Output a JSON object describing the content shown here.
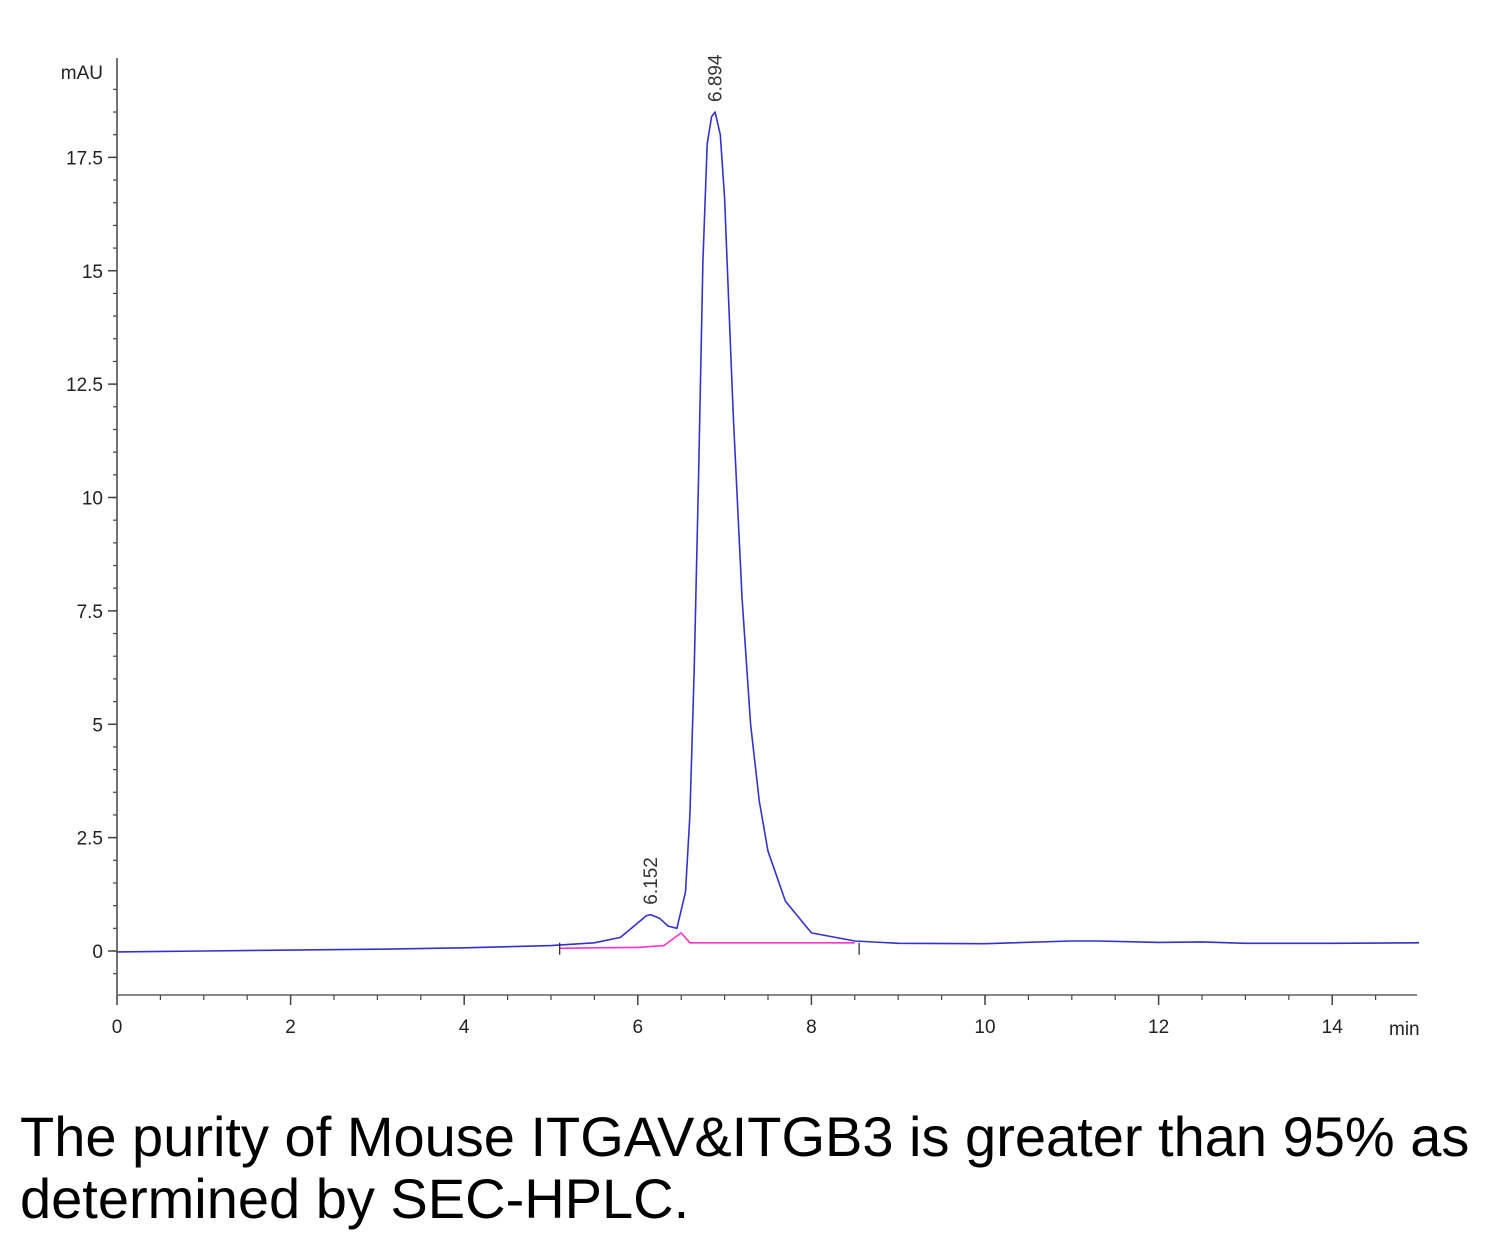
{
  "chart_data": {
    "type": "line",
    "ylabel": "mAU",
    "xlabel": "min",
    "xlim": [
      0,
      15
    ],
    "ylim": [
      -1,
      19.4
    ],
    "x_ticks": [
      0,
      2,
      4,
      6,
      8,
      10,
      12,
      14
    ],
    "x_tick_labels": [
      "0",
      "2",
      "4",
      "6",
      "8",
      "10",
      "12",
      "14"
    ],
    "y_ticks": [
      0,
      2.5,
      5,
      7.5,
      10,
      12.5,
      15,
      17.5
    ],
    "y_tick_labels": [
      "0",
      "2.5",
      "5",
      "7.5",
      "10",
      "12.5",
      "15",
      "17.5"
    ],
    "grid": false,
    "series": [
      {
        "color": "#3333cc",
        "x": [
          0,
          1,
          2,
          3,
          4,
          5,
          5.5,
          5.8,
          6.0,
          6.1,
          6.15,
          6.25,
          6.35,
          6.45,
          6.55,
          6.6,
          6.65,
          6.7,
          6.75,
          6.8,
          6.85,
          6.89,
          6.95,
          7.0,
          7.05,
          7.1,
          7.2,
          7.3,
          7.4,
          7.5,
          7.7,
          8.0,
          8.5,
          9,
          10,
          11,
          11.3,
          12,
          12.5,
          13,
          14,
          15
        ],
        "y": [
          -0.02,
          0.0,
          0.02,
          0.04,
          0.07,
          0.12,
          0.18,
          0.3,
          0.62,
          0.78,
          0.8,
          0.72,
          0.55,
          0.5,
          1.3,
          3.0,
          6.2,
          10.5,
          15.2,
          17.8,
          18.4,
          18.5,
          18.0,
          16.6,
          14.2,
          11.8,
          7.8,
          5.0,
          3.3,
          2.2,
          1.1,
          0.4,
          0.22,
          0.17,
          0.16,
          0.22,
          0.22,
          0.19,
          0.2,
          0.17,
          0.17,
          0.18
        ]
      },
      {
        "color": "#ff33cc",
        "x": [
          5.1,
          5.5,
          6.0,
          6.3,
          6.5,
          6.6,
          8.5
        ],
        "y": [
          0.06,
          0.07,
          0.08,
          0.12,
          0.4,
          0.18,
          0.18
        ]
      }
    ],
    "annotations": [
      {
        "text": "6.152",
        "x": 6.152,
        "y": 0.8
      },
      {
        "text": "6.894",
        "x": 6.894,
        "y": 18.5
      }
    ]
  },
  "caption": "The purity of Mouse ITGAV&ITGB3 is greater than 95% as determined by SEC-HPLC."
}
